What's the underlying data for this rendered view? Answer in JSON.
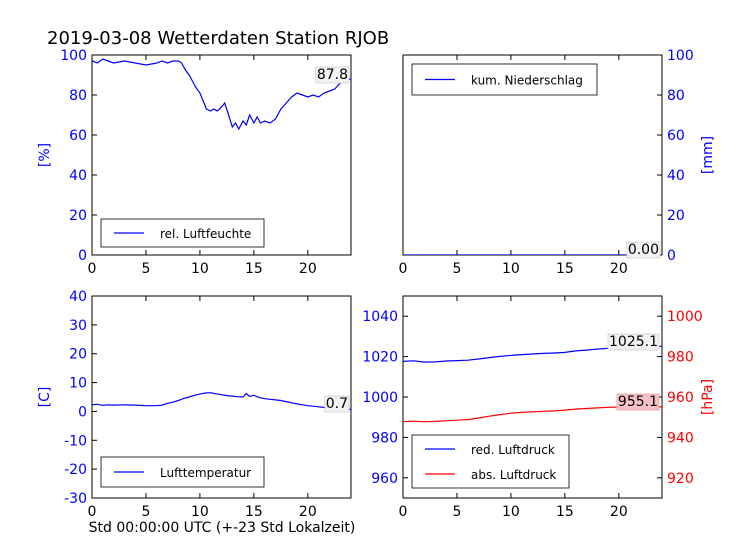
{
  "title": "2019-03-08 Wetterdaten Station RJOB",
  "xlabel": "Std 00:00:00 UTC (+-23 Std Lokalzeit)",
  "colors": {
    "primary": "#0000ff",
    "secondary": "#ff0000",
    "axis": "#000000"
  },
  "chart_data": [
    {
      "type": "line",
      "panel": "humidity",
      "ylabel": "[%]",
      "xlim": [
        0,
        24
      ],
      "ylim": [
        0,
        100
      ],
      "xticks": [
        0,
        5,
        10,
        15,
        20
      ],
      "yticks": [
        0,
        20,
        40,
        60,
        80,
        100
      ],
      "legend_placement": "lower-left",
      "readout": "87.8",
      "series": [
        {
          "name": "rel. Luftfeuchte",
          "color": "#0000ff",
          "x": [
            0,
            0.5,
            1,
            1.5,
            2,
            3,
            4,
            5,
            6,
            6.5,
            7,
            7.5,
            8,
            8.3,
            8.6,
            9,
            9.3,
            9.6,
            10,
            10.3,
            10.6,
            11,
            11.3,
            11.6,
            12,
            12.3,
            12.6,
            13,
            13.3,
            13.6,
            14,
            14.3,
            14.6,
            15,
            15.3,
            15.6,
            16,
            16.5,
            17,
            17.5,
            18,
            18.5,
            19,
            19.5,
            20,
            20.5,
            21,
            21.5,
            22,
            22.5,
            23,
            23.5,
            24
          ],
          "y": [
            97,
            96,
            98,
            97,
            96,
            97,
            96,
            95,
            96,
            97,
            96,
            97,
            97,
            96,
            93,
            90,
            87,
            84,
            81,
            77,
            73,
            72,
            73,
            72,
            74,
            76,
            71,
            64,
            66,
            63,
            67,
            65,
            70,
            66,
            69,
            66,
            67,
            66,
            68,
            73,
            76,
            79,
            81,
            80,
            79,
            80,
            79,
            81,
            82,
            83,
            86,
            88,
            87.8
          ]
        }
      ]
    },
    {
      "type": "line",
      "panel": "precipitation",
      "ylabel": "[mm]",
      "xlim": [
        0,
        24
      ],
      "ylim": [
        0,
        100
      ],
      "xticks": [
        0,
        5,
        10,
        15,
        20
      ],
      "yticks": [
        0,
        20,
        40,
        60,
        80,
        100
      ],
      "legend_placement": "upper-left",
      "readout": "0.00",
      "series": [
        {
          "name": "kum. Niederschlag",
          "color": "#0000ff",
          "x": [
            0,
            24
          ],
          "y": [
            0,
            0
          ]
        }
      ]
    },
    {
      "type": "line",
      "panel": "temperature",
      "ylabel": "[C]",
      "xlim": [
        0,
        24
      ],
      "ylim": [
        -30,
        40
      ],
      "xticks": [
        0,
        5,
        10,
        15,
        20
      ],
      "yticks": [
        -30,
        -20,
        -10,
        0,
        10,
        20,
        30,
        40
      ],
      "legend_placement": "lower-left",
      "readout": "0.7",
      "series": [
        {
          "name": "Lufttemperatur",
          "color": "#0000ff",
          "x": [
            0,
            0.5,
            1,
            1.5,
            2,
            3,
            4,
            5,
            6,
            6.5,
            7,
            7.5,
            8,
            8.5,
            9,
            9.5,
            10,
            10.5,
            11,
            11.5,
            12,
            12.5,
            13,
            13.5,
            14,
            14.3,
            14.6,
            15,
            15.5,
            16,
            16.5,
            17,
            17.5,
            18,
            18.5,
            19,
            19.5,
            20,
            20.5,
            21,
            21.5,
            22,
            23,
            24
          ],
          "y": [
            2.3,
            2.5,
            2.1,
            2.3,
            2.2,
            2.3,
            2.2,
            2.0,
            2.0,
            2.2,
            2.8,
            3.2,
            3.8,
            4.5,
            5.0,
            5.6,
            6.0,
            6.4,
            6.5,
            6.1,
            5.8,
            5.5,
            5.3,
            5.1,
            5.0,
            6.2,
            5.2,
            5.6,
            4.8,
            4.4,
            4.2,
            4.0,
            3.8,
            3.4,
            3.0,
            2.6,
            2.3,
            2.0,
            1.8,
            1.6,
            1.4,
            1.2,
            0.9,
            0.7
          ]
        }
      ]
    },
    {
      "type": "line",
      "panel": "pressure",
      "ylabel": "[hPa]",
      "xlim": [
        0,
        24
      ],
      "ylim": [
        950,
        1050
      ],
      "ylim_right": [
        910,
        1010
      ],
      "xticks": [
        0,
        5,
        10,
        15,
        20
      ],
      "yticks": [
        960,
        980,
        1000,
        1020,
        1040
      ],
      "yticks_right": [
        920,
        940,
        960,
        980,
        1000
      ],
      "legend_placement": "lower-left",
      "readout": "1025.1",
      "readout_right": "955.1",
      "series": [
        {
          "name": "red. Luftdruck",
          "color": "#0000ff",
          "axis": "left",
          "x": [
            0,
            1,
            2,
            3,
            4,
            5,
            6,
            7,
            8,
            9,
            10,
            11,
            12,
            13,
            14,
            15,
            16,
            17,
            18,
            19,
            20,
            21,
            22,
            23,
            24
          ],
          "y": [
            1017.6,
            1017.9,
            1017.3,
            1017.4,
            1017.8,
            1018.0,
            1018.2,
            1018.8,
            1019.5,
            1020.1,
            1020.6,
            1021.0,
            1021.3,
            1021.6,
            1021.8,
            1022.1,
            1022.8,
            1023.2,
            1023.7,
            1024.1,
            1024.4,
            1024.7,
            1024.9,
            1025.0,
            1025.1
          ]
        },
        {
          "name": "abs. Luftdruck",
          "color": "#ff0000",
          "axis": "right",
          "x": [
            0,
            1,
            2,
            3,
            4,
            5,
            6,
            7,
            8,
            9,
            10,
            11,
            12,
            13,
            14,
            15,
            16,
            17,
            18,
            19,
            20,
            21,
            22,
            23,
            24
          ],
          "y": [
            947.8,
            948.0,
            947.7,
            947.9,
            948.2,
            948.5,
            948.8,
            949.6,
            950.5,
            951.3,
            952.0,
            952.4,
            952.6,
            952.9,
            953.1,
            953.5,
            954.0,
            954.3,
            954.6,
            954.9,
            955.0,
            955.1,
            955.2,
            955.1,
            955.1
          ]
        }
      ]
    }
  ]
}
